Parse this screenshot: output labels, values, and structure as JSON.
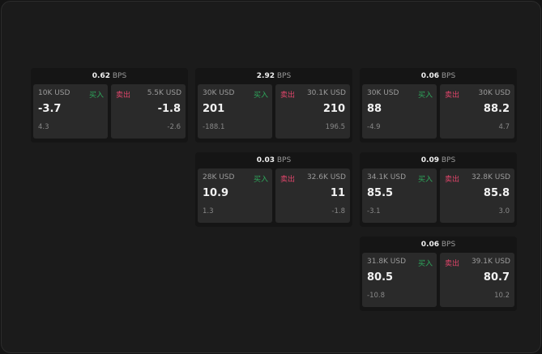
{
  "labels": {
    "buy": "买入",
    "sell": "卖出",
    "unit": "BPS"
  },
  "colors": {
    "buy": "#2ea85c",
    "sell": "#e0456b"
  },
  "tiles": [
    {
      "spread": "0.62",
      "bid_size": "10K USD",
      "bid": "-3.7",
      "bid_change": "4.3",
      "ask_size": "5.5K USD",
      "ask": "-1.8",
      "ask_change": "-2.6"
    },
    {
      "spread": "2.92",
      "bid_size": "30K USD",
      "bid": "201",
      "bid_change": "-188.1",
      "ask_size": "30.1K USD",
      "ask": "210",
      "ask_change": "196.5"
    },
    {
      "spread": "0.06",
      "bid_size": "30K USD",
      "bid": "88",
      "bid_change": "-4.9",
      "ask_size": "30K USD",
      "ask": "88.2",
      "ask_change": "4.7"
    },
    {
      "spread": "0.03",
      "bid_size": "28K USD",
      "bid": "10.9",
      "bid_change": "1.3",
      "ask_size": "32.6K USD",
      "ask": "11",
      "ask_change": "-1.8"
    },
    {
      "spread": "0.09",
      "bid_size": "34.1K USD",
      "bid": "85.5",
      "bid_change": "-3.1",
      "ask_size": "32.8K USD",
      "ask": "85.8",
      "ask_change": "3.0"
    },
    {
      "spread": "0.06",
      "bid_size": "31.8K USD",
      "bid": "80.5",
      "bid_change": "-10.8",
      "ask_size": "39.1K USD",
      "ask": "80.7",
      "ask_change": "10.2"
    }
  ]
}
